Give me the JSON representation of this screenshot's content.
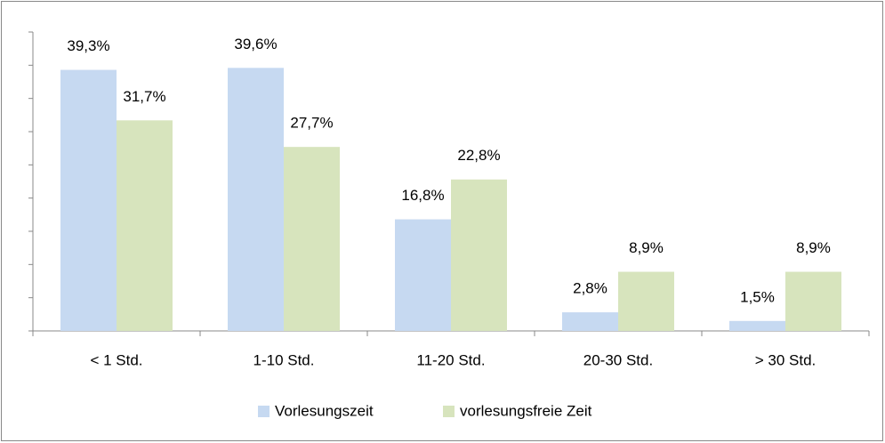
{
  "chart_data": {
    "type": "bar",
    "categories": [
      "< 1 Std.",
      "1-10 Std.",
      "11-20 Std.",
      "20-30 Std.",
      "> 30 Std."
    ],
    "series": [
      {
        "name": "Vorlesungszeit",
        "color": "#c6d9f1",
        "values": [
          39.3,
          39.6,
          16.8,
          2.8,
          1.5
        ],
        "value_labels": [
          "39,3%",
          "39,6%",
          "16,8%",
          "2,8%",
          "1,5%"
        ]
      },
      {
        "name": "vorlesungsfreie Zeit",
        "color": "#d7e4bd",
        "values": [
          31.7,
          27.7,
          22.8,
          8.9,
          8.9
        ],
        "value_labels": [
          "31,7%",
          "27,7%",
          "22,8%",
          "8,9%",
          "8,9%"
        ]
      }
    ],
    "ylim": [
      0,
      45
    ],
    "yticks": [
      0,
      5,
      10,
      15,
      20,
      25,
      30,
      35,
      40,
      45
    ],
    "grid": false,
    "legend": "bottom"
  }
}
